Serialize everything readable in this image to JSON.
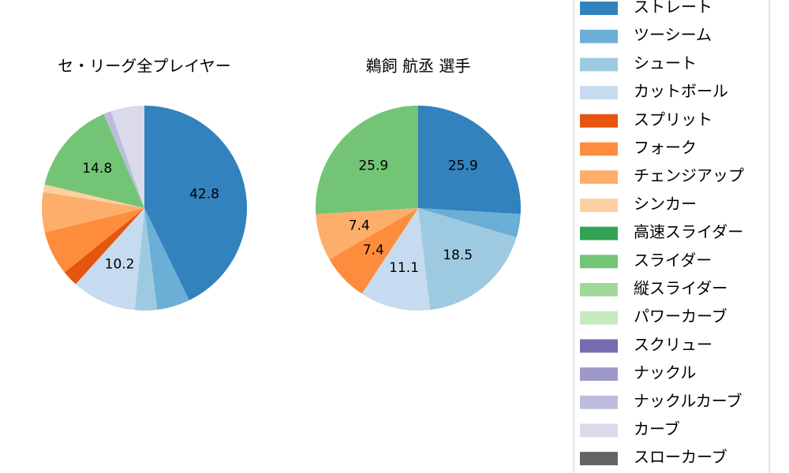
{
  "chart_data": [
    {
      "type": "pie",
      "title": "セ・リーグ全プレイヤー",
      "values": [
        42.8,
        5.2,
        3.5,
        10.2,
        2.5,
        7.0,
        6.3,
        1.2,
        0,
        14.8,
        0,
        0,
        0,
        0,
        1.2,
        5.3,
        0
      ],
      "value_labels": [
        "42.8",
        null,
        null,
        "10.2",
        null,
        null,
        null,
        null,
        null,
        "14.8",
        null,
        null,
        null,
        null,
        null,
        null,
        null
      ]
    },
    {
      "type": "pie",
      "title": "鵜飼 航丞  選手",
      "values": [
        25.9,
        3.7,
        18.5,
        11.1,
        0,
        7.4,
        7.4,
        0,
        0,
        25.9,
        0,
        0,
        0,
        0,
        0,
        0,
        0
      ],
      "value_labels": [
        "25.9",
        null,
        "18.5",
        "11.1",
        null,
        "7.4",
        "7.4",
        null,
        null,
        "25.9",
        null,
        null,
        null,
        null,
        null,
        null,
        null
      ]
    }
  ],
  "legend": {
    "labels": [
      "ストレート",
      "ツーシーム",
      "シュート",
      "カットボール",
      "スプリット",
      "フォーク",
      "チェンジアップ",
      "シンカー",
      "高速スライダー",
      "スライダー",
      "縦スライダー",
      "パワーカーブ",
      "スクリュー",
      "ナックル",
      "ナックルカーブ",
      "カーブ",
      "スローカーブ"
    ],
    "colors": [
      "#3182bd",
      "#6baed6",
      "#9ecae1",
      "#c6dbef",
      "#e6550d",
      "#fd8d3c",
      "#fdae6b",
      "#fdd0a2",
      "#31a354",
      "#74c476",
      "#a1d99b",
      "#c7e9c0",
      "#756bb1",
      "#9e9ac8",
      "#bcbddc",
      "#dadaeb",
      "#636363"
    ]
  }
}
